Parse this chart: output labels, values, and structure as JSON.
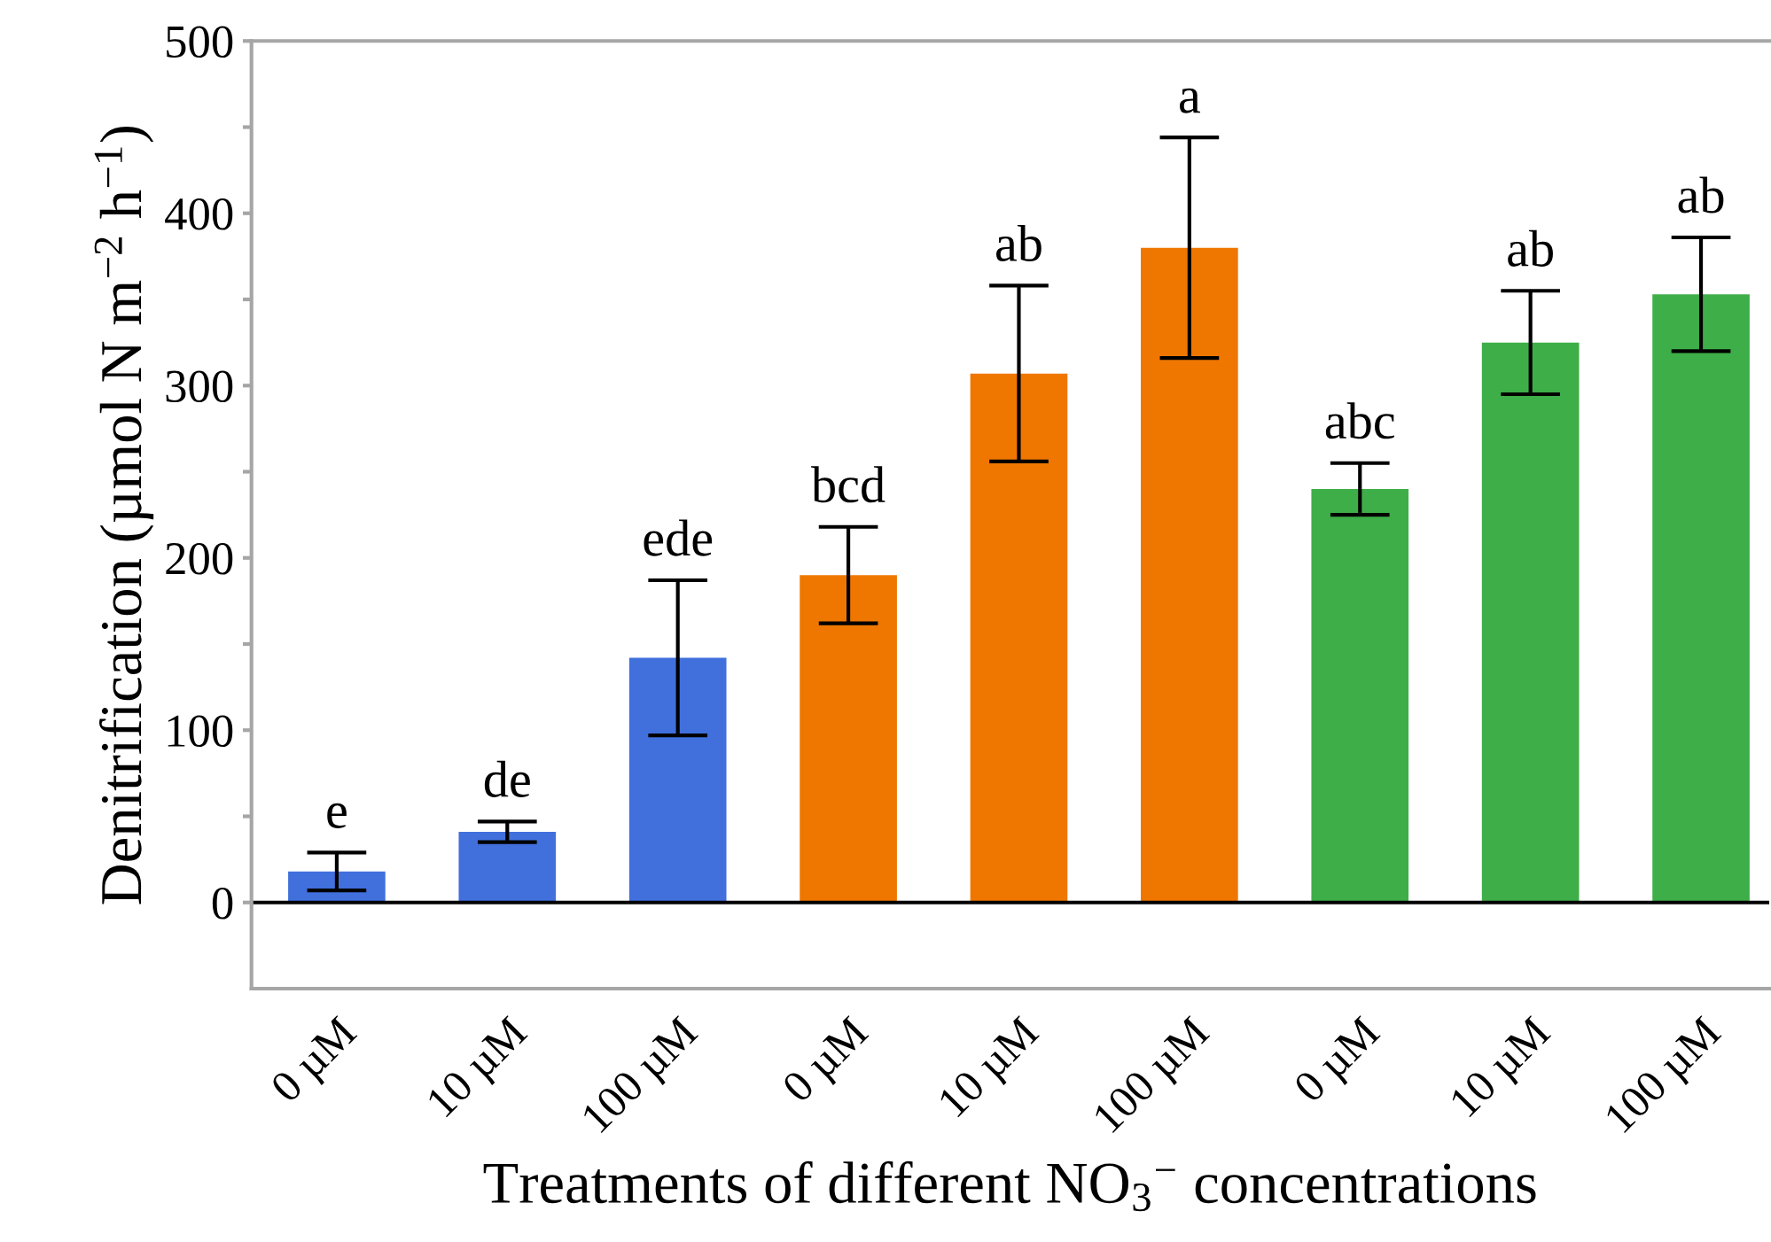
{
  "chart_data": {
    "type": "bar",
    "xlabel": "Treatments of different NO$_{3}$$^{−}$ concentrations",
    "ylabel": "Denitrification (µmol N m$^{−2}$ h$^{−1}$)",
    "categories": [
      "0 µM",
      "10 µM",
      "100 µM",
      "0 µM",
      "10 µM",
      "100 µM",
      "0 µM",
      "10 µM",
      "100 µM"
    ],
    "values": [
      18,
      41,
      142,
      190,
      307,
      380,
      240,
      325,
      353
    ],
    "errors": [
      11,
      6,
      45,
      28,
      51,
      64,
      15,
      30,
      33
    ],
    "colors": [
      "#4170dd",
      "#4170dd",
      "#4170dd",
      "#ef7700",
      "#ef7700",
      "#ef7700",
      "#3eae48",
      "#3eae48",
      "#3eae48"
    ],
    "annotations": [
      "e",
      "de",
      "ede",
      "bcd",
      "ab",
      "a",
      "abc",
      "ab",
      "ab"
    ],
    "ylim": [
      -50,
      500
    ],
    "yticks": [
      0,
      {
        "value": 50,
        "label": null
      },
      100,
      {
        "value": 150,
        "label": null
      },
      200,
      {
        "value": 250,
        "label": null
      },
      300,
      {
        "value": 350,
        "label": null
      },
      400,
      {
        "value": 450,
        "label": null
      },
      500
    ],
    "legend": false
  }
}
